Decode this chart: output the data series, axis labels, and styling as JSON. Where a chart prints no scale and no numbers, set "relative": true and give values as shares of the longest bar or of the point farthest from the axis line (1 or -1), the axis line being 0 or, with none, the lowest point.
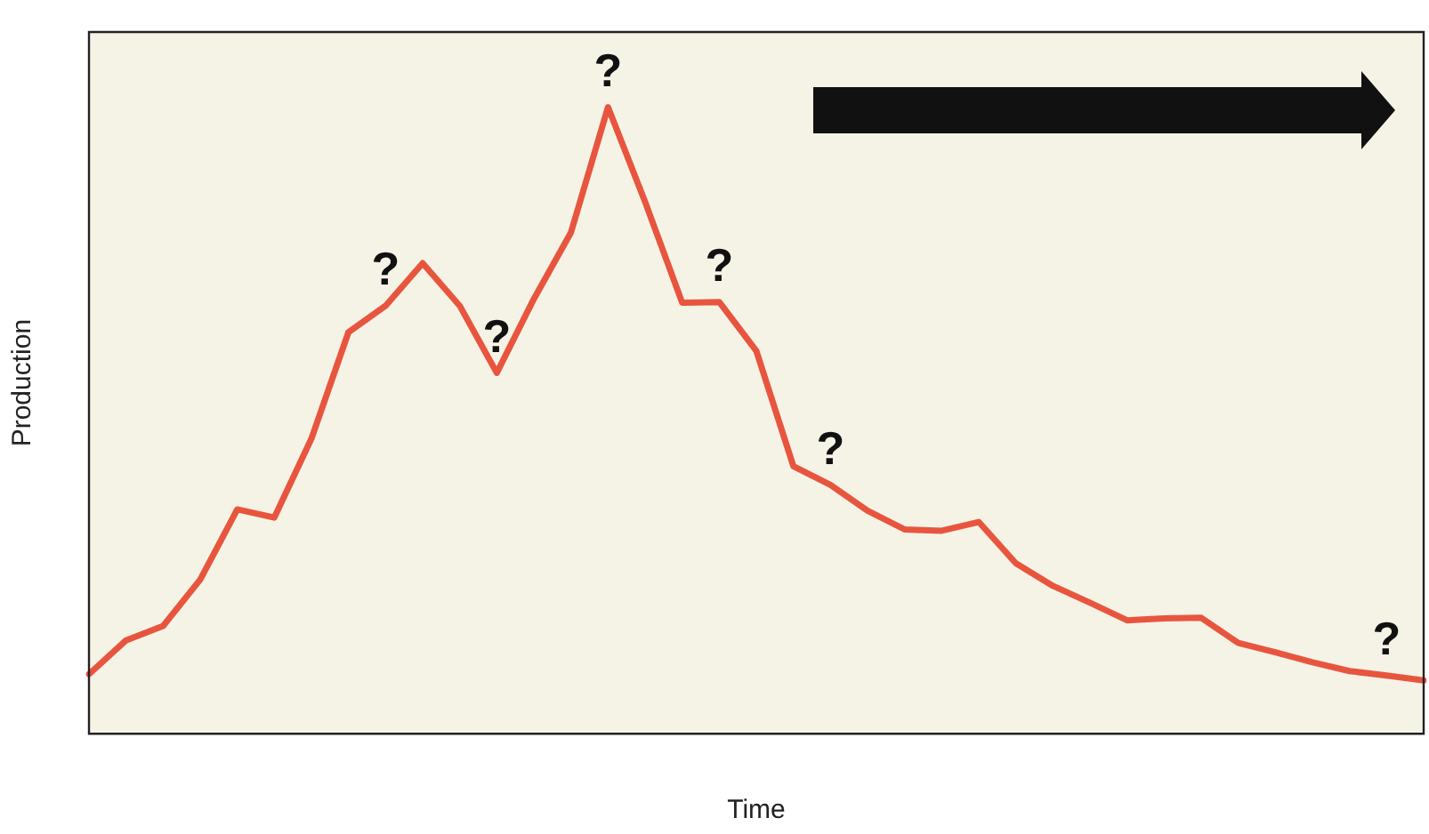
{
  "chart_data": {
    "type": "line",
    "relative": true,
    "xlabel": "Time",
    "ylabel": "Production",
    "grid": false,
    "legend": false,
    "marker": "none",
    "line_style": "solid",
    "categories": [
      null,
      null,
      null,
      null,
      null,
      null,
      null,
      null,
      null,
      null,
      null,
      null,
      null,
      null,
      null,
      null,
      null,
      null,
      null,
      null,
      null,
      null,
      null,
      null,
      null,
      null,
      null,
      null,
      null,
      null,
      null,
      null,
      null,
      null,
      null,
      null,
      null
    ],
    "series": [
      {
        "color": "#e8553f",
        "values": [
          0.095,
          0.149,
          0.172,
          0.246,
          0.358,
          0.345,
          0.471,
          0.641,
          0.683,
          0.751,
          0.683,
          0.576,
          0.694,
          0.8,
          1,
          0.849,
          0.688,
          0.689,
          0.611,
          0.427,
          0.397,
          0.356,
          0.326,
          0.324,
          0.338,
          0.272,
          0.236,
          0.209,
          0.181,
          0.184,
          0.185,
          0.145,
          0.13,
          0.114,
          0.1,
          0.093,
          0.085
        ]
      }
    ],
    "annotations": [
      {
        "text": "?",
        "y": 0.683
      },
      {
        "text": "?",
        "y": 0.576
      },
      {
        "text": "?",
        "y": 1
      },
      {
        "text": "?",
        "y": 0.689
      },
      {
        "text": "?",
        "y": 0.397
      },
      {
        "text": "?",
        "y": 0.093
      }
    ]
  }
}
